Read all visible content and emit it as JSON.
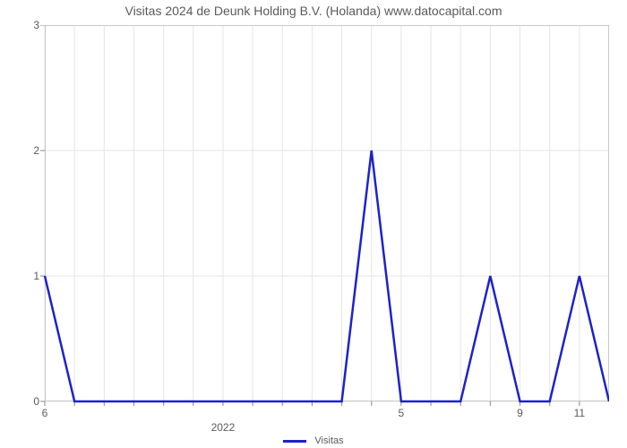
{
  "chart": {
    "type": "line",
    "title": "Visitas 2024 de Deunk Holding B.V. (Holanda) www.datocapital.com",
    "title_fontsize": 14,
    "title_color": "#5a5a5a",
    "background_color": "#ffffff",
    "plot_border_color": "#c8c8c8",
    "grid_color": "#e5e5e5",
    "line_color": "#1e22c9",
    "line_width": 2.5,
    "tick_mark_color": "#888888",
    "label_color": "#5a5a5a",
    "label_fontsize": 12,
    "ylim": [
      0,
      3
    ],
    "y_ticks": [
      0,
      1,
      2,
      3
    ],
    "x_count": 20,
    "x_ticks": [
      {
        "pos": 0,
        "label": "6"
      },
      {
        "pos": 6,
        "label": "2022",
        "year": true
      },
      {
        "pos": 12,
        "label": "5"
      },
      {
        "pos": 16,
        "label": "9"
      },
      {
        "pos": 18,
        "label": "11"
      }
    ],
    "x_minor_ticks": [
      0,
      1,
      2,
      3,
      4,
      5,
      6,
      7,
      8,
      9,
      10,
      11,
      12,
      13,
      14,
      15,
      16,
      17,
      18
    ],
    "y_values": [
      1,
      0,
      0,
      0,
      0,
      0,
      0,
      0,
      0,
      0,
      0,
      2,
      0,
      0,
      0,
      1,
      0,
      0,
      1,
      0
    ],
    "legend_label": "Visitas"
  }
}
